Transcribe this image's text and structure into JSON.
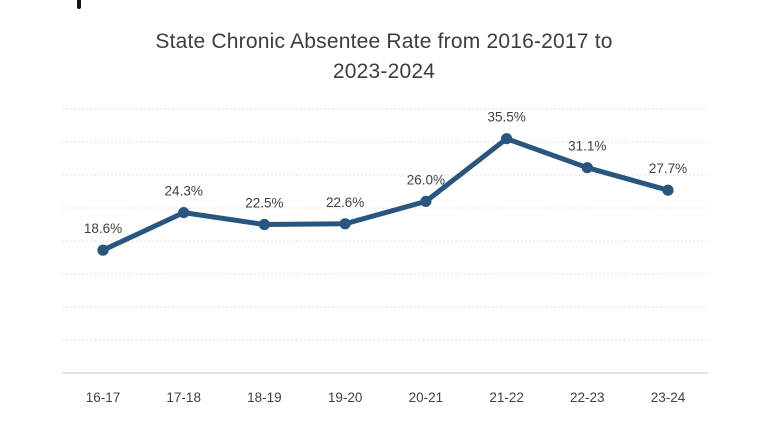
{
  "page": {
    "background": "#ffffff",
    "top_left_partial_glyph": true
  },
  "chart_data": {
    "type": "line",
    "title": "State Chronic Absentee Rate from 2016-2017 to 2023-2024",
    "title_lines": [
      "State Chronic Absentee Rate from 2016-2017 to",
      "2023-2024"
    ],
    "categories": [
      "16-17",
      "17-18",
      "18-19",
      "19-20",
      "20-21",
      "21-22",
      "22-23",
      "23-24"
    ],
    "values": [
      18.6,
      24.3,
      22.5,
      22.6,
      26.0,
      35.5,
      31.1,
      27.7
    ],
    "data_labels": [
      "18.6%",
      "24.3%",
      "22.5%",
      "22.6%",
      "26.0%",
      "35.5%",
      "31.1%",
      "27.7%"
    ],
    "xlabel": "",
    "ylabel": "",
    "ylim": [
      0,
      40
    ],
    "gridline_step": 5,
    "grid": true,
    "y_axis_tick_labels": "hidden",
    "legend": "none",
    "colors": {
      "line": "#29567E",
      "marker": "#29567E",
      "gridline": "#D9D9D9",
      "axis_line": "#D4D4D4",
      "title_text": "#3D3D3D",
      "label_text": "#404040"
    },
    "marker": "circle"
  }
}
